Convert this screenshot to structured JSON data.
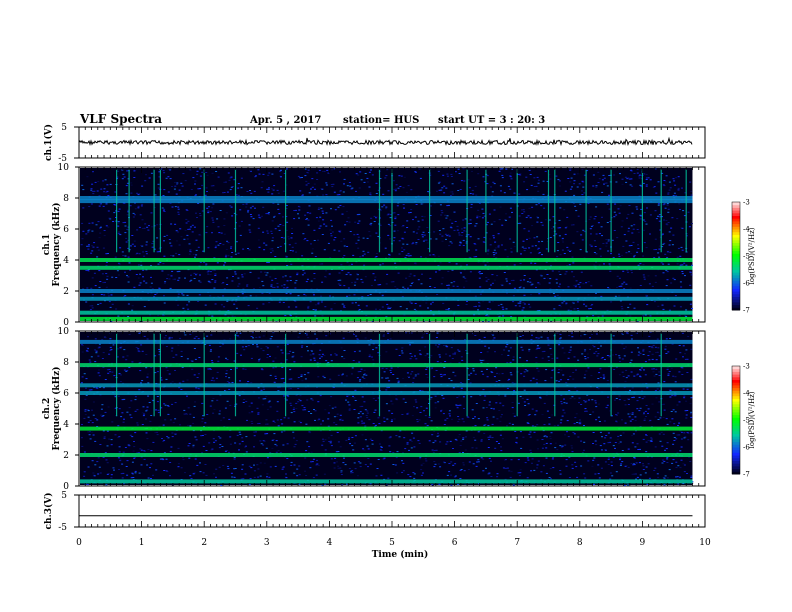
{
  "header": {
    "title": "VLF Spectra",
    "date": "Apr. 5  , 2017",
    "station": "station= HUS",
    "start": "start  UT  =   3  : 20: 3"
  },
  "colorbar_label": "log(PSD)(V²/Hz)",
  "colors": {
    "background": "#00001e",
    "wave_low": "#0a1aa8",
    "wave_high": "#00c8a0",
    "trace": "#000000"
  },
  "chart_data": [
    {
      "type": "line",
      "name": "ch1_waveform",
      "ylabel": "ch.1(V)",
      "ylim": [
        -5,
        5
      ],
      "yticks": [
        "5",
        "-5"
      ],
      "x": [
        0,
        1,
        2,
        3,
        4,
        5,
        6,
        7,
        8,
        9,
        9.8
      ],
      "y": [
        0,
        0,
        0,
        0,
        0,
        0,
        0,
        0,
        0,
        0,
        0
      ],
      "grid": false
    },
    {
      "type": "heatmap",
      "name": "ch1_spectrogram",
      "ylabel": "ch.1\nFrequency (kHz)",
      "xlim": [
        0,
        10
      ],
      "ylim": [
        0,
        10
      ],
      "yticks": [
        "0",
        "2",
        "4",
        "6",
        "8",
        "10"
      ],
      "zlim": [
        -7,
        -3
      ],
      "zticks": [
        "-3",
        "-4",
        "-5",
        "-6",
        "-7"
      ],
      "colorscale": [
        "#00001e",
        "#1b2cff",
        "#00c8a0",
        "#00ff00",
        "#ffff00",
        "#ff0000",
        "#ffffff"
      ],
      "bands_khz": [
        {
          "f": 0.2,
          "level": -5.2
        },
        {
          "f": 0.6,
          "level": -5.6
        },
        {
          "f": 1.5,
          "level": -5.8
        },
        {
          "f": 2.0,
          "level": -5.9
        },
        {
          "f": 3.5,
          "level": -5.4
        },
        {
          "f": 4.0,
          "level": -5.3
        },
        {
          "f": 7.8,
          "level": -5.9
        },
        {
          "f": 8.0,
          "level": -5.9
        }
      ],
      "impulses_min": [
        0.6,
        0.8,
        1.2,
        1.3,
        2.0,
        2.5,
        3.3,
        4.8,
        5.0,
        5.6,
        6.2,
        6.5,
        7.0,
        7.5,
        7.6,
        8.1,
        8.5,
        9.0,
        9.3,
        9.7
      ]
    },
    {
      "type": "heatmap",
      "name": "ch2_spectrogram",
      "ylabel": "ch.2\nFrequency (kHz)",
      "xlim": [
        0,
        10
      ],
      "ylim": [
        0,
        10
      ],
      "yticks": [
        "0",
        "2",
        "4",
        "6",
        "8",
        "10"
      ],
      "zlim": [
        -7,
        -3
      ],
      "zticks": [
        "-3",
        "-4",
        "-5",
        "-6",
        "-7"
      ],
      "bands_khz": [
        {
          "f": 0.3,
          "level": -5.6
        },
        {
          "f": 2.0,
          "level": -5.4
        },
        {
          "f": 3.7,
          "level": -5.2
        },
        {
          "f": 6.0,
          "level": -5.8
        },
        {
          "f": 6.5,
          "level": -5.8
        },
        {
          "f": 7.8,
          "level": -5.4
        },
        {
          "f": 9.3,
          "level": -5.9
        }
      ],
      "impulses_min": [
        0.6,
        1.2,
        1.3,
        2.0,
        2.5,
        3.3,
        4.8,
        5.6,
        6.2,
        7.0,
        7.6,
        8.5,
        9.3
      ]
    },
    {
      "type": "line",
      "name": "ch3_waveform",
      "ylabel": "ch.3(V)",
      "ylim": [
        -5,
        5
      ],
      "yticks": [
        "5",
        "-5"
      ],
      "x": [
        0,
        9.8
      ],
      "y": [
        -1.5,
        -1.5
      ],
      "grid": false
    }
  ],
  "xaxis": {
    "label": "Time  (min)",
    "ticks": [
      "0",
      "1",
      "2",
      "3",
      "4",
      "5",
      "6",
      "7",
      "8",
      "9",
      "10"
    ]
  }
}
